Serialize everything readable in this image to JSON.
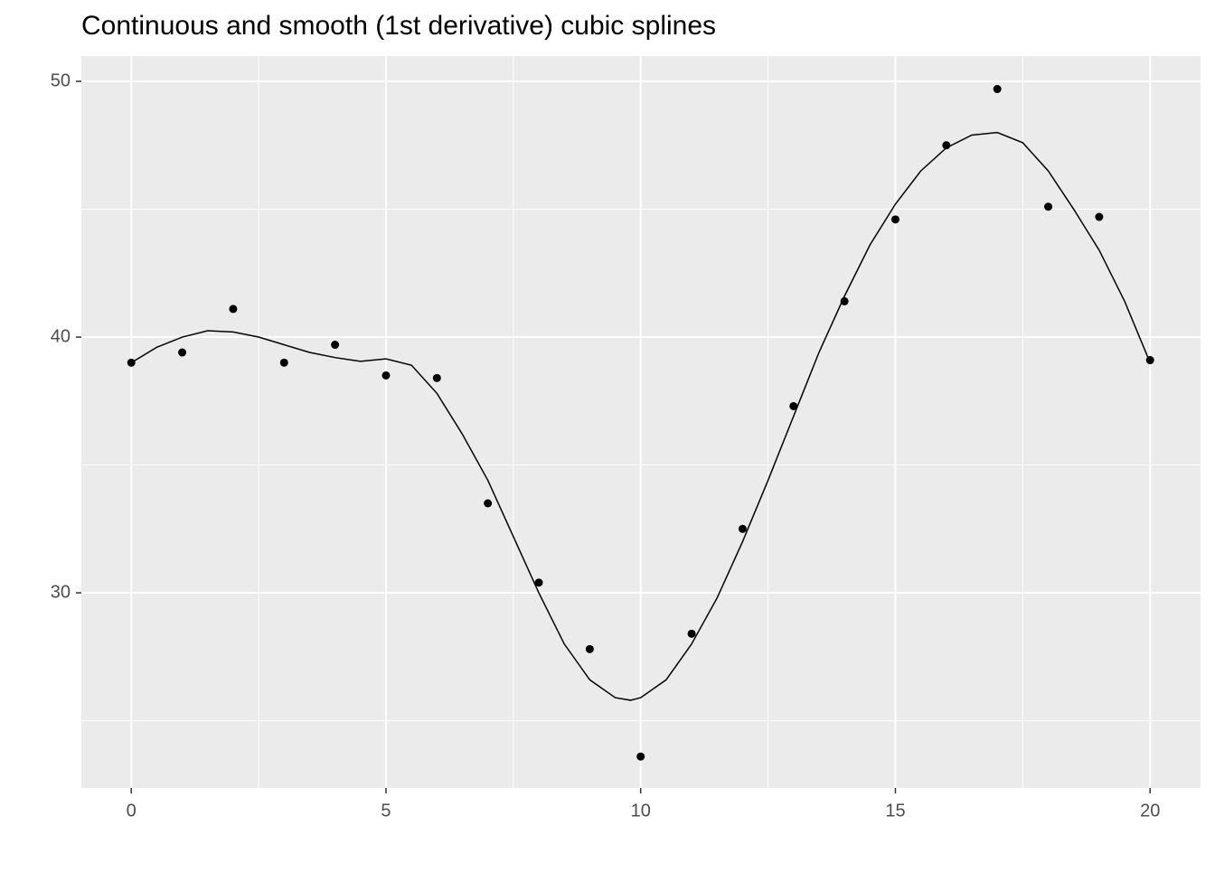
{
  "chart_data": {
    "type": "scatter",
    "title": "Continuous and smooth (1st derivative) cubic splines",
    "series": [
      {
        "type": "scatter",
        "color": "#000000",
        "x": [
          0,
          1,
          2,
          3,
          4,
          5,
          6,
          7,
          8,
          9,
          10,
          11,
          12,
          13,
          14,
          15,
          16,
          17,
          18,
          19,
          20
        ],
        "values": [
          39.0,
          39.4,
          41.1,
          39.0,
          39.7,
          38.5,
          38.4,
          33.5,
          30.4,
          27.8,
          23.6,
          28.4,
          32.5,
          37.3,
          41.4,
          44.6,
          47.5,
          49.7,
          45.1,
          44.7,
          39.1
        ]
      },
      {
        "type": "line",
        "color": "#000000",
        "x": [
          0,
          0.5,
          1,
          1.5,
          2,
          2.5,
          3,
          3.5,
          4,
          4.5,
          5,
          5.5,
          6,
          6.5,
          7,
          7.5,
          8,
          8.5,
          9,
          9.5,
          9.8,
          10,
          10.5,
          11,
          11.5,
          12,
          12.5,
          13,
          13.5,
          14,
          14.5,
          15,
          15.5,
          16,
          16.5,
          17,
          17.5,
          18,
          18.5,
          19,
          19.5,
          20
        ],
        "values": [
          39.0,
          39.6,
          40.0,
          40.25,
          40.2,
          40.0,
          39.7,
          39.4,
          39.2,
          39.05,
          39.15,
          38.9,
          37.8,
          36.2,
          34.4,
          32.2,
          30.0,
          28.0,
          26.6,
          25.9,
          25.8,
          25.9,
          26.6,
          28.0,
          29.8,
          32.0,
          34.4,
          36.9,
          39.4,
          41.6,
          43.6,
          45.2,
          46.5,
          47.4,
          47.9,
          48.0,
          47.6,
          46.5,
          45.0,
          43.4,
          41.4,
          39.0
        ]
      }
    ],
    "xlim": [
      -0.98,
      20.99
    ],
    "ylim": [
      22.37,
      50.99
    ],
    "xticks": [
      0,
      5,
      10,
      15,
      20
    ],
    "yticks": [
      30,
      40,
      50
    ],
    "xminor": [
      2.5,
      7.5,
      12.5,
      17.5
    ],
    "yminor": [
      25,
      35,
      45
    ],
    "grid": true
  }
}
